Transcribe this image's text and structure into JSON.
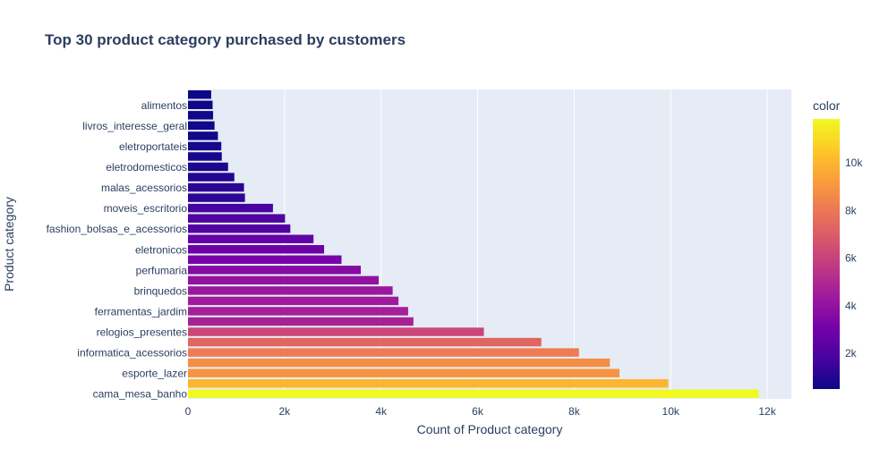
{
  "chart_data": {
    "type": "bar",
    "orientation": "horizontal",
    "title": "Top 30 product category purchased by customers",
    "xlabel": "Count of Product category",
    "ylabel": "Product category",
    "xlim": [
      0,
      12500
    ],
    "x_ticks": [
      0,
      2000,
      4000,
      6000,
      8000,
      10000,
      12000
    ],
    "x_tick_labels": [
      "0",
      "2k",
      "4k",
      "6k",
      "8k",
      "10k",
      "12k"
    ],
    "categories": [
      "cama_mesa_banho",
      "",
      "esporte_lazer",
      "",
      "informatica_acessorios",
      "",
      "relogios_presentes",
      "",
      "ferramentas_jardim",
      "",
      "brinquedos",
      "",
      "perfumaria",
      "",
      "eletronicos",
      "",
      "fashion_bolsas_e_acessorios",
      "",
      "moveis_escritorio",
      "",
      "malas_acessorios",
      "",
      "eletrodomesticos",
      "",
      "eletroportateis",
      "",
      "livros_interesse_geral",
      "",
      "alimentos",
      ""
    ],
    "values": [
      11823,
      9950,
      8940,
      8740,
      8100,
      7320,
      6130,
      4670,
      4560,
      4360,
      4240,
      3950,
      3580,
      3180,
      2820,
      2600,
      2120,
      2010,
      1760,
      1180,
      1160,
      960,
      830,
      700,
      690,
      620,
      550,
      520,
      510,
      480
    ],
    "colorscale": "plasma",
    "color_range": [
      480,
      11823
    ],
    "colorbar": {
      "title": "color",
      "ticks": [
        2000,
        4000,
        6000,
        8000,
        10000
      ],
      "tick_labels": [
        "2k",
        "4k",
        "6k",
        "8k",
        "10k"
      ]
    },
    "grid": true,
    "legend": "colorbar-right",
    "colors": {
      "plot_bg": "#e5ecf6",
      "title": "#2a3f5f",
      "axis_text": "#2a3f5f",
      "grid": "#ffffff"
    }
  }
}
